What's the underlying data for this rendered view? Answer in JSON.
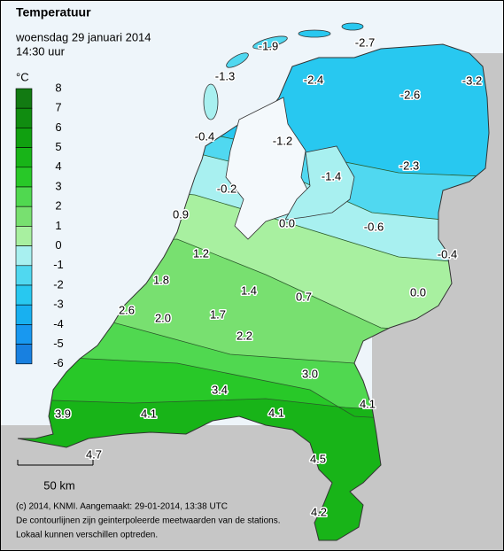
{
  "header": {
    "title": "Temperatuur",
    "date": "woensdag 29 januari 2014",
    "time": "14:30 uur"
  },
  "legend": {
    "unit": "°C",
    "ticks": [
      8,
      7,
      6,
      5,
      4,
      3,
      2,
      1,
      0,
      -1,
      -2,
      -3,
      -4,
      -5,
      -6
    ],
    "colors": [
      "#127a12",
      "#108c10",
      "#10a010",
      "#18b418",
      "#28c828",
      "#50d850",
      "#78e070",
      "#a8f0a0",
      "#a8f0f0",
      "#50d8f0",
      "#28c8f0",
      "#18b0f0",
      "#1898f0",
      "#1880e0"
    ]
  },
  "stations": [
    {
      "label": "-1.9"
    },
    {
      "label": "-2.7"
    },
    {
      "label": "-1.3"
    },
    {
      "label": "-2.4"
    },
    {
      "label": "-2.6"
    },
    {
      "label": "-3.2"
    },
    {
      "label": "-0.4"
    },
    {
      "label": "-1.2"
    },
    {
      "label": "-2.3"
    },
    {
      "label": "-1.4"
    },
    {
      "label": "-0.2"
    },
    {
      "label": "0.9"
    },
    {
      "label": "0.0"
    },
    {
      "label": "-0.6"
    },
    {
      "label": "-0.4"
    },
    {
      "label": "1.2"
    },
    {
      "label": "1.8"
    },
    {
      "label": "1.4"
    },
    {
      "label": "0.7"
    },
    {
      "label": "0.0"
    },
    {
      "label": "2.6"
    },
    {
      "label": "2.0"
    },
    {
      "label": "1.7"
    },
    {
      "label": "2.2"
    },
    {
      "label": "3.0"
    },
    {
      "label": "3.4"
    },
    {
      "label": "4.1"
    },
    {
      "label": "3.9"
    },
    {
      "label": "4.1"
    },
    {
      "label": "4.1"
    },
    {
      "label": "4.7"
    },
    {
      "label": "4.5"
    },
    {
      "label": "4.2"
    }
  ],
  "scale": {
    "label": "50 km"
  },
  "footer": [
    "(c) 2014, KNMI. Aangemaakt: 29-01-2014, 13:38 UTC",
    "De contourlijnen zijn geinterpoleerde meetwaarden van de stations.",
    "Lokaal kunnen verschillen optreden."
  ]
}
